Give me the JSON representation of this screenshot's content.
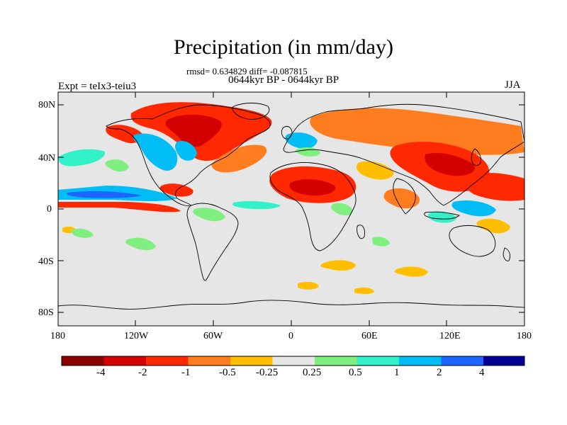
{
  "title": "Precipitation (in mm/day)",
  "stats": "rmsd= 0.634829 diff= -0.087815",
  "period": "0644kyr BP - 0644kyr BP",
  "experiment": "Expt = teIx3-teiu3",
  "season": "JJA",
  "axes": {
    "y_ticks": [
      "80N",
      "40N",
      "0",
      "40S",
      "80S"
    ],
    "x_ticks": [
      "180",
      "120W",
      "60W",
      "0",
      "60E",
      "120E",
      "180"
    ]
  },
  "colorbar": {
    "colors": [
      "#8c0000",
      "#d40000",
      "#ff2800",
      "#ff7d1e",
      "#ffbe00",
      "#e6e6e6",
      "#7ff07f",
      "#32f0c8",
      "#00bef5",
      "#1e64ff",
      "#000096"
    ],
    "labels": [
      "-4",
      "-2",
      "-1",
      "-0.5",
      "-0.25",
      "0.25",
      "0.5",
      "1",
      "2",
      "4"
    ]
  },
  "colors": {
    "background": "#e6e6e6",
    "coast": "#000000"
  }
}
